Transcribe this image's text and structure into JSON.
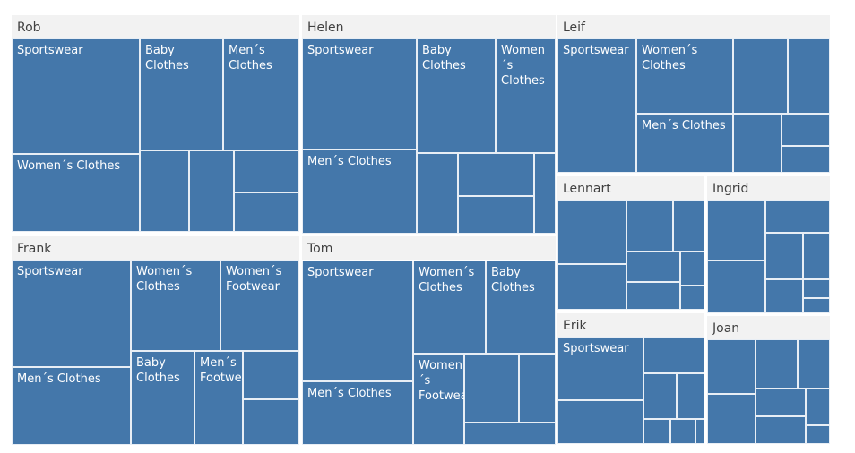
{
  "chart_data": {
    "type": "treemap",
    "groups": [
      {
        "name": "Rob",
        "items": [
          {
            "label": "Sportswear"
          },
          {
            "label": "Baby Clothes"
          },
          {
            "label": "Men´s Clothes"
          },
          {
            "label": "Women´s Clothes"
          },
          {
            "label": ""
          },
          {
            "label": ""
          },
          {
            "label": ""
          },
          {
            "label": ""
          }
        ]
      },
      {
        "name": "Helen",
        "items": [
          {
            "label": "Sportswear"
          },
          {
            "label": "Baby Clothes"
          },
          {
            "label": "Women´s Clothes"
          },
          {
            "label": "Men´s Clothes"
          },
          {
            "label": ""
          },
          {
            "label": ""
          },
          {
            "label": ""
          },
          {
            "label": ""
          }
        ]
      },
      {
        "name": "Leif",
        "items": [
          {
            "label": "Sportswear"
          },
          {
            "label": "Women´s Clothes"
          },
          {
            "label": "Men´s Clothes"
          },
          {
            "label": ""
          },
          {
            "label": ""
          },
          {
            "label": ""
          },
          {
            "label": ""
          },
          {
            "label": ""
          }
        ]
      },
      {
        "name": "Frank",
        "items": [
          {
            "label": "Sportswear"
          },
          {
            "label": "Women´s Clothes"
          },
          {
            "label": "Women´s Footwear"
          },
          {
            "label": "Men´s Clothes"
          },
          {
            "label": "Baby Clothes"
          },
          {
            "label": "Men´s Footwear"
          },
          {
            "label": ""
          },
          {
            "label": ""
          }
        ]
      },
      {
        "name": "Tom",
        "items": [
          {
            "label": "Sportswear"
          },
          {
            "label": "Women´s Clothes"
          },
          {
            "label": "Baby Clothes"
          },
          {
            "label": "Men´s Clothes"
          },
          {
            "label": "Women´s Footwear"
          },
          {
            "label": ""
          },
          {
            "label": ""
          },
          {
            "label": ""
          }
        ]
      },
      {
        "name": "Lennart",
        "items": [
          {
            "label": ""
          },
          {
            "label": ""
          },
          {
            "label": ""
          },
          {
            "label": ""
          },
          {
            "label": ""
          },
          {
            "label": ""
          },
          {
            "label": ""
          },
          {
            "label": ""
          },
          {
            "label": ""
          }
        ]
      },
      {
        "name": "Ingrid",
        "items": [
          {
            "label": ""
          },
          {
            "label": ""
          },
          {
            "label": ""
          },
          {
            "label": ""
          },
          {
            "label": ""
          },
          {
            "label": ""
          },
          {
            "label": ""
          },
          {
            "label": ""
          },
          {
            "label": ""
          }
        ]
      },
      {
        "name": "Erik",
        "items": [
          {
            "label": "Sportswear"
          },
          {
            "label": ""
          },
          {
            "label": ""
          },
          {
            "label": ""
          },
          {
            "label": ""
          },
          {
            "label": ""
          },
          {
            "label": ""
          },
          {
            "label": ""
          }
        ]
      },
      {
        "name": "Joan",
        "items": [
          {
            "label": ""
          },
          {
            "label": ""
          },
          {
            "label": ""
          },
          {
            "label": ""
          },
          {
            "label": ""
          },
          {
            "label": ""
          },
          {
            "label": ""
          },
          {
            "label": ""
          }
        ]
      }
    ]
  },
  "colors": {
    "cell_fill": "#4477aa",
    "header_bg": "#f2f2f2",
    "header_text": "#404040",
    "cell_border": "#e8eef5"
  }
}
